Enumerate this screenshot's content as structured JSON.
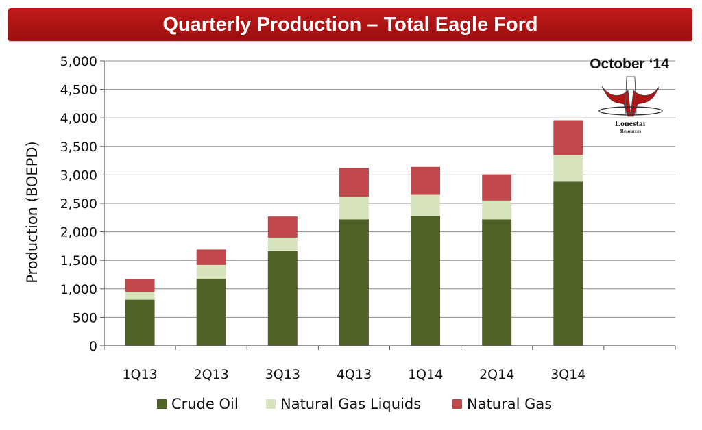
{
  "header": {
    "title": "Quarterly Production – Total Eagle Ford"
  },
  "annotation": {
    "date": "October ‘14"
  },
  "logo": {
    "name": "Lonestar",
    "tagline": "Resources"
  },
  "colors": {
    "crude_oil": "#4e6227",
    "ngl": "#d8e4bd",
    "natural_gas": "#c0474a",
    "header": "#b01515"
  },
  "chart_data": {
    "type": "bar",
    "stacked": true,
    "title": "Quarterly Production – Total Eagle Ford",
    "ylabel": "Production (BOEPD)",
    "xlabel": "",
    "ylim": [
      0,
      5000
    ],
    "yticks": [
      0,
      500,
      1000,
      1500,
      2000,
      2500,
      3000,
      3500,
      4000,
      4500,
      5000
    ],
    "ytick_labels": [
      "0",
      "500",
      "1,000",
      "1,500",
      "2,000",
      "2,500",
      "3,000",
      "3,500",
      "4,000",
      "4,500",
      "5,000"
    ],
    "categories": [
      "1Q13",
      "2Q13",
      "3Q13",
      "4Q13",
      "1Q14",
      "2Q14",
      "3Q14"
    ],
    "series": [
      {
        "name": "Crude Oil",
        "values": [
          810,
          1180,
          1660,
          2220,
          2280,
          2220,
          2880
        ]
      },
      {
        "name": "Natural Gas Liquids",
        "values": [
          140,
          240,
          240,
          400,
          370,
          330,
          470
        ]
      },
      {
        "name": "Natural Gas",
        "values": [
          220,
          270,
          370,
          500,
          490,
          460,
          610
        ]
      }
    ],
    "grid": true,
    "legend": "bottom"
  }
}
